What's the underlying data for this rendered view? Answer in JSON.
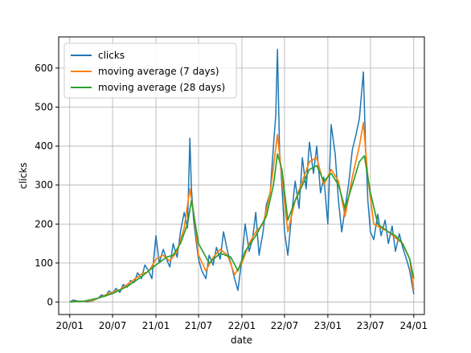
{
  "chart_data": {
    "type": "line",
    "xlabel": "date",
    "ylabel": "clicks",
    "x_range": [
      "2019-11-15",
      "2024-02-15"
    ],
    "ylim": [
      -32,
      680
    ],
    "x_ticks": [
      {
        "date": "2020-01-01",
        "label": "20/01"
      },
      {
        "date": "2020-07-01",
        "label": "20/07"
      },
      {
        "date": "2021-01-01",
        "label": "21/01"
      },
      {
        "date": "2021-07-01",
        "label": "21/07"
      },
      {
        "date": "2022-01-01",
        "label": "22/01"
      },
      {
        "date": "2022-07-01",
        "label": "22/07"
      },
      {
        "date": "2023-01-01",
        "label": "23/01"
      },
      {
        "date": "2023-07-01",
        "label": "23/07"
      },
      {
        "date": "2024-01-01",
        "label": "24/01"
      }
    ],
    "y_ticks": [
      0,
      100,
      200,
      300,
      400,
      500,
      600
    ],
    "grid": true,
    "legend_position": "top-left",
    "series": [
      {
        "name": "clicks",
        "color": "#1f77b4",
        "points": [
          [
            "2020-01-01",
            0
          ],
          [
            "2020-01-15",
            5
          ],
          [
            "2020-02-01",
            3
          ],
          [
            "2020-02-15",
            1
          ],
          [
            "2020-03-01",
            2
          ],
          [
            "2020-03-15",
            0
          ],
          [
            "2020-04-01",
            2
          ],
          [
            "2020-04-15",
            5
          ],
          [
            "2020-05-01",
            10
          ],
          [
            "2020-05-15",
            18
          ],
          [
            "2020-06-01",
            15
          ],
          [
            "2020-06-15",
            28
          ],
          [
            "2020-07-01",
            22
          ],
          [
            "2020-07-15",
            35
          ],
          [
            "2020-08-01",
            25
          ],
          [
            "2020-08-15",
            45
          ],
          [
            "2020-09-01",
            38
          ],
          [
            "2020-09-15",
            55
          ],
          [
            "2020-10-01",
            50
          ],
          [
            "2020-10-15",
            75
          ],
          [
            "2020-11-01",
            60
          ],
          [
            "2020-11-15",
            95
          ],
          [
            "2020-12-01",
            80
          ],
          [
            "2020-12-15",
            60
          ],
          [
            "2021-01-01",
            170
          ],
          [
            "2021-01-15",
            100
          ],
          [
            "2021-02-01",
            135
          ],
          [
            "2021-02-15",
            110
          ],
          [
            "2021-03-01",
            90
          ],
          [
            "2021-03-15",
            150
          ],
          [
            "2021-04-01",
            115
          ],
          [
            "2021-04-15",
            180
          ],
          [
            "2021-05-01",
            230
          ],
          [
            "2021-05-15",
            190
          ],
          [
            "2021-05-25",
            420
          ],
          [
            "2021-06-01",
            290
          ],
          [
            "2021-06-10",
            210
          ],
          [
            "2021-06-20",
            160
          ],
          [
            "2021-07-01",
            110
          ],
          [
            "2021-07-15",
            80
          ],
          [
            "2021-08-01",
            60
          ],
          [
            "2021-08-15",
            120
          ],
          [
            "2021-09-01",
            95
          ],
          [
            "2021-09-15",
            140
          ],
          [
            "2021-10-01",
            110
          ],
          [
            "2021-10-15",
            180
          ],
          [
            "2021-11-01",
            130
          ],
          [
            "2021-11-15",
            100
          ],
          [
            "2021-12-01",
            60
          ],
          [
            "2021-12-15",
            30
          ],
          [
            "2022-01-01",
            110
          ],
          [
            "2022-01-15",
            200
          ],
          [
            "2022-02-01",
            130
          ],
          [
            "2022-02-15",
            160
          ],
          [
            "2022-03-01",
            230
          ],
          [
            "2022-03-15",
            120
          ],
          [
            "2022-04-01",
            180
          ],
          [
            "2022-04-15",
            250
          ],
          [
            "2022-05-01",
            280
          ],
          [
            "2022-05-15",
            400
          ],
          [
            "2022-05-25",
            480
          ],
          [
            "2022-06-01",
            648
          ],
          [
            "2022-06-10",
            390
          ],
          [
            "2022-06-20",
            300
          ],
          [
            "2022-07-01",
            180
          ],
          [
            "2022-07-15",
            120
          ],
          [
            "2022-08-01",
            230
          ],
          [
            "2022-08-15",
            310
          ],
          [
            "2022-09-01",
            240
          ],
          [
            "2022-09-15",
            370
          ],
          [
            "2022-10-01",
            290
          ],
          [
            "2022-10-15",
            410
          ],
          [
            "2022-11-01",
            330
          ],
          [
            "2022-11-15",
            400
          ],
          [
            "2022-12-01",
            280
          ],
          [
            "2022-12-15",
            320
          ],
          [
            "2023-01-01",
            200
          ],
          [
            "2023-01-15",
            455
          ],
          [
            "2023-02-01",
            380
          ],
          [
            "2023-02-15",
            260
          ],
          [
            "2023-03-01",
            180
          ],
          [
            "2023-03-15",
            240
          ],
          [
            "2023-04-01",
            310
          ],
          [
            "2023-04-15",
            390
          ],
          [
            "2023-05-01",
            430
          ],
          [
            "2023-05-15",
            470
          ],
          [
            "2023-06-01",
            590
          ],
          [
            "2023-06-10",
            400
          ],
          [
            "2023-06-20",
            260
          ],
          [
            "2023-07-01",
            180
          ],
          [
            "2023-07-15",
            160
          ],
          [
            "2023-08-01",
            225
          ],
          [
            "2023-08-15",
            170
          ],
          [
            "2023-09-01",
            210
          ],
          [
            "2023-09-15",
            150
          ],
          [
            "2023-10-01",
            195
          ],
          [
            "2023-10-15",
            130
          ],
          [
            "2023-11-01",
            175
          ],
          [
            "2023-11-15",
            140
          ],
          [
            "2023-12-01",
            110
          ],
          [
            "2023-12-15",
            80
          ],
          [
            "2024-01-01",
            20
          ]
        ]
      },
      {
        "name": "moving average (7 days)",
        "color": "#ff7f0e",
        "points": [
          [
            "2020-01-01",
            0
          ],
          [
            "2020-02-01",
            2
          ],
          [
            "2020-03-01",
            2
          ],
          [
            "2020-04-01",
            3
          ],
          [
            "2020-05-01",
            10
          ],
          [
            "2020-06-01",
            18
          ],
          [
            "2020-07-01",
            25
          ],
          [
            "2020-08-01",
            32
          ],
          [
            "2020-09-01",
            45
          ],
          [
            "2020-10-01",
            58
          ],
          [
            "2020-11-01",
            72
          ],
          [
            "2020-12-01",
            78
          ],
          [
            "2021-01-01",
            110
          ],
          [
            "2021-02-01",
            120
          ],
          [
            "2021-03-01",
            105
          ],
          [
            "2021-04-01",
            130
          ],
          [
            "2021-05-01",
            190
          ],
          [
            "2021-05-25",
            290
          ],
          [
            "2021-06-10",
            230
          ],
          [
            "2021-07-01",
            120
          ],
          [
            "2021-08-01",
            80
          ],
          [
            "2021-09-01",
            115
          ],
          [
            "2021-10-01",
            135
          ],
          [
            "2021-11-01",
            120
          ],
          [
            "2021-12-01",
            70
          ],
          [
            "2022-01-01",
            100
          ],
          [
            "2022-02-01",
            150
          ],
          [
            "2022-03-01",
            180
          ],
          [
            "2022-04-01",
            200
          ],
          [
            "2022-05-01",
            280
          ],
          [
            "2022-06-01",
            430
          ],
          [
            "2022-06-20",
            320
          ],
          [
            "2022-07-15",
            180
          ],
          [
            "2022-08-15",
            260
          ],
          [
            "2022-09-15",
            310
          ],
          [
            "2022-10-15",
            360
          ],
          [
            "2022-11-15",
            370
          ],
          [
            "2022-12-15",
            300
          ],
          [
            "2023-01-15",
            340
          ],
          [
            "2023-02-15",
            310
          ],
          [
            "2023-03-15",
            220
          ],
          [
            "2023-04-15",
            320
          ],
          [
            "2023-05-15",
            400
          ],
          [
            "2023-06-01",
            460
          ],
          [
            "2023-06-20",
            320
          ],
          [
            "2023-07-15",
            200
          ],
          [
            "2023-08-15",
            190
          ],
          [
            "2023-09-15",
            180
          ],
          [
            "2023-10-15",
            165
          ],
          [
            "2023-11-15",
            150
          ],
          [
            "2023-12-15",
            110
          ],
          [
            "2024-01-01",
            30
          ]
        ]
      },
      {
        "name": "moving average (28 days)",
        "color": "#2ca02c",
        "points": [
          [
            "2020-01-01",
            0
          ],
          [
            "2020-03-01",
            2
          ],
          [
            "2020-05-01",
            10
          ],
          [
            "2020-07-01",
            22
          ],
          [
            "2020-09-01",
            40
          ],
          [
            "2020-11-01",
            65
          ],
          [
            "2021-01-01",
            95
          ],
          [
            "2021-02-15",
            115
          ],
          [
            "2021-03-15",
            120
          ],
          [
            "2021-04-15",
            150
          ],
          [
            "2021-05-15",
            200
          ],
          [
            "2021-06-01",
            260
          ],
          [
            "2021-07-01",
            150
          ],
          [
            "2021-08-15",
            100
          ],
          [
            "2021-10-01",
            125
          ],
          [
            "2021-11-15",
            115
          ],
          [
            "2021-12-15",
            80
          ],
          [
            "2022-01-15",
            130
          ],
          [
            "2022-03-01",
            170
          ],
          [
            "2022-04-15",
            220
          ],
          [
            "2022-05-15",
            300
          ],
          [
            "2022-06-01",
            380
          ],
          [
            "2022-06-20",
            340
          ],
          [
            "2022-07-15",
            210
          ],
          [
            "2022-08-15",
            260
          ],
          [
            "2022-09-15",
            300
          ],
          [
            "2022-10-15",
            340
          ],
          [
            "2022-11-15",
            350
          ],
          [
            "2022-12-15",
            310
          ],
          [
            "2023-01-15",
            330
          ],
          [
            "2023-02-15",
            300
          ],
          [
            "2023-03-15",
            240
          ],
          [
            "2023-04-15",
            300
          ],
          [
            "2023-05-15",
            360
          ],
          [
            "2023-06-05",
            375
          ],
          [
            "2023-07-01",
            280
          ],
          [
            "2023-08-01",
            200
          ],
          [
            "2023-09-15",
            180
          ],
          [
            "2023-10-15",
            170
          ],
          [
            "2023-11-15",
            150
          ],
          [
            "2023-12-15",
            110
          ],
          [
            "2024-01-01",
            60
          ]
        ]
      }
    ]
  }
}
